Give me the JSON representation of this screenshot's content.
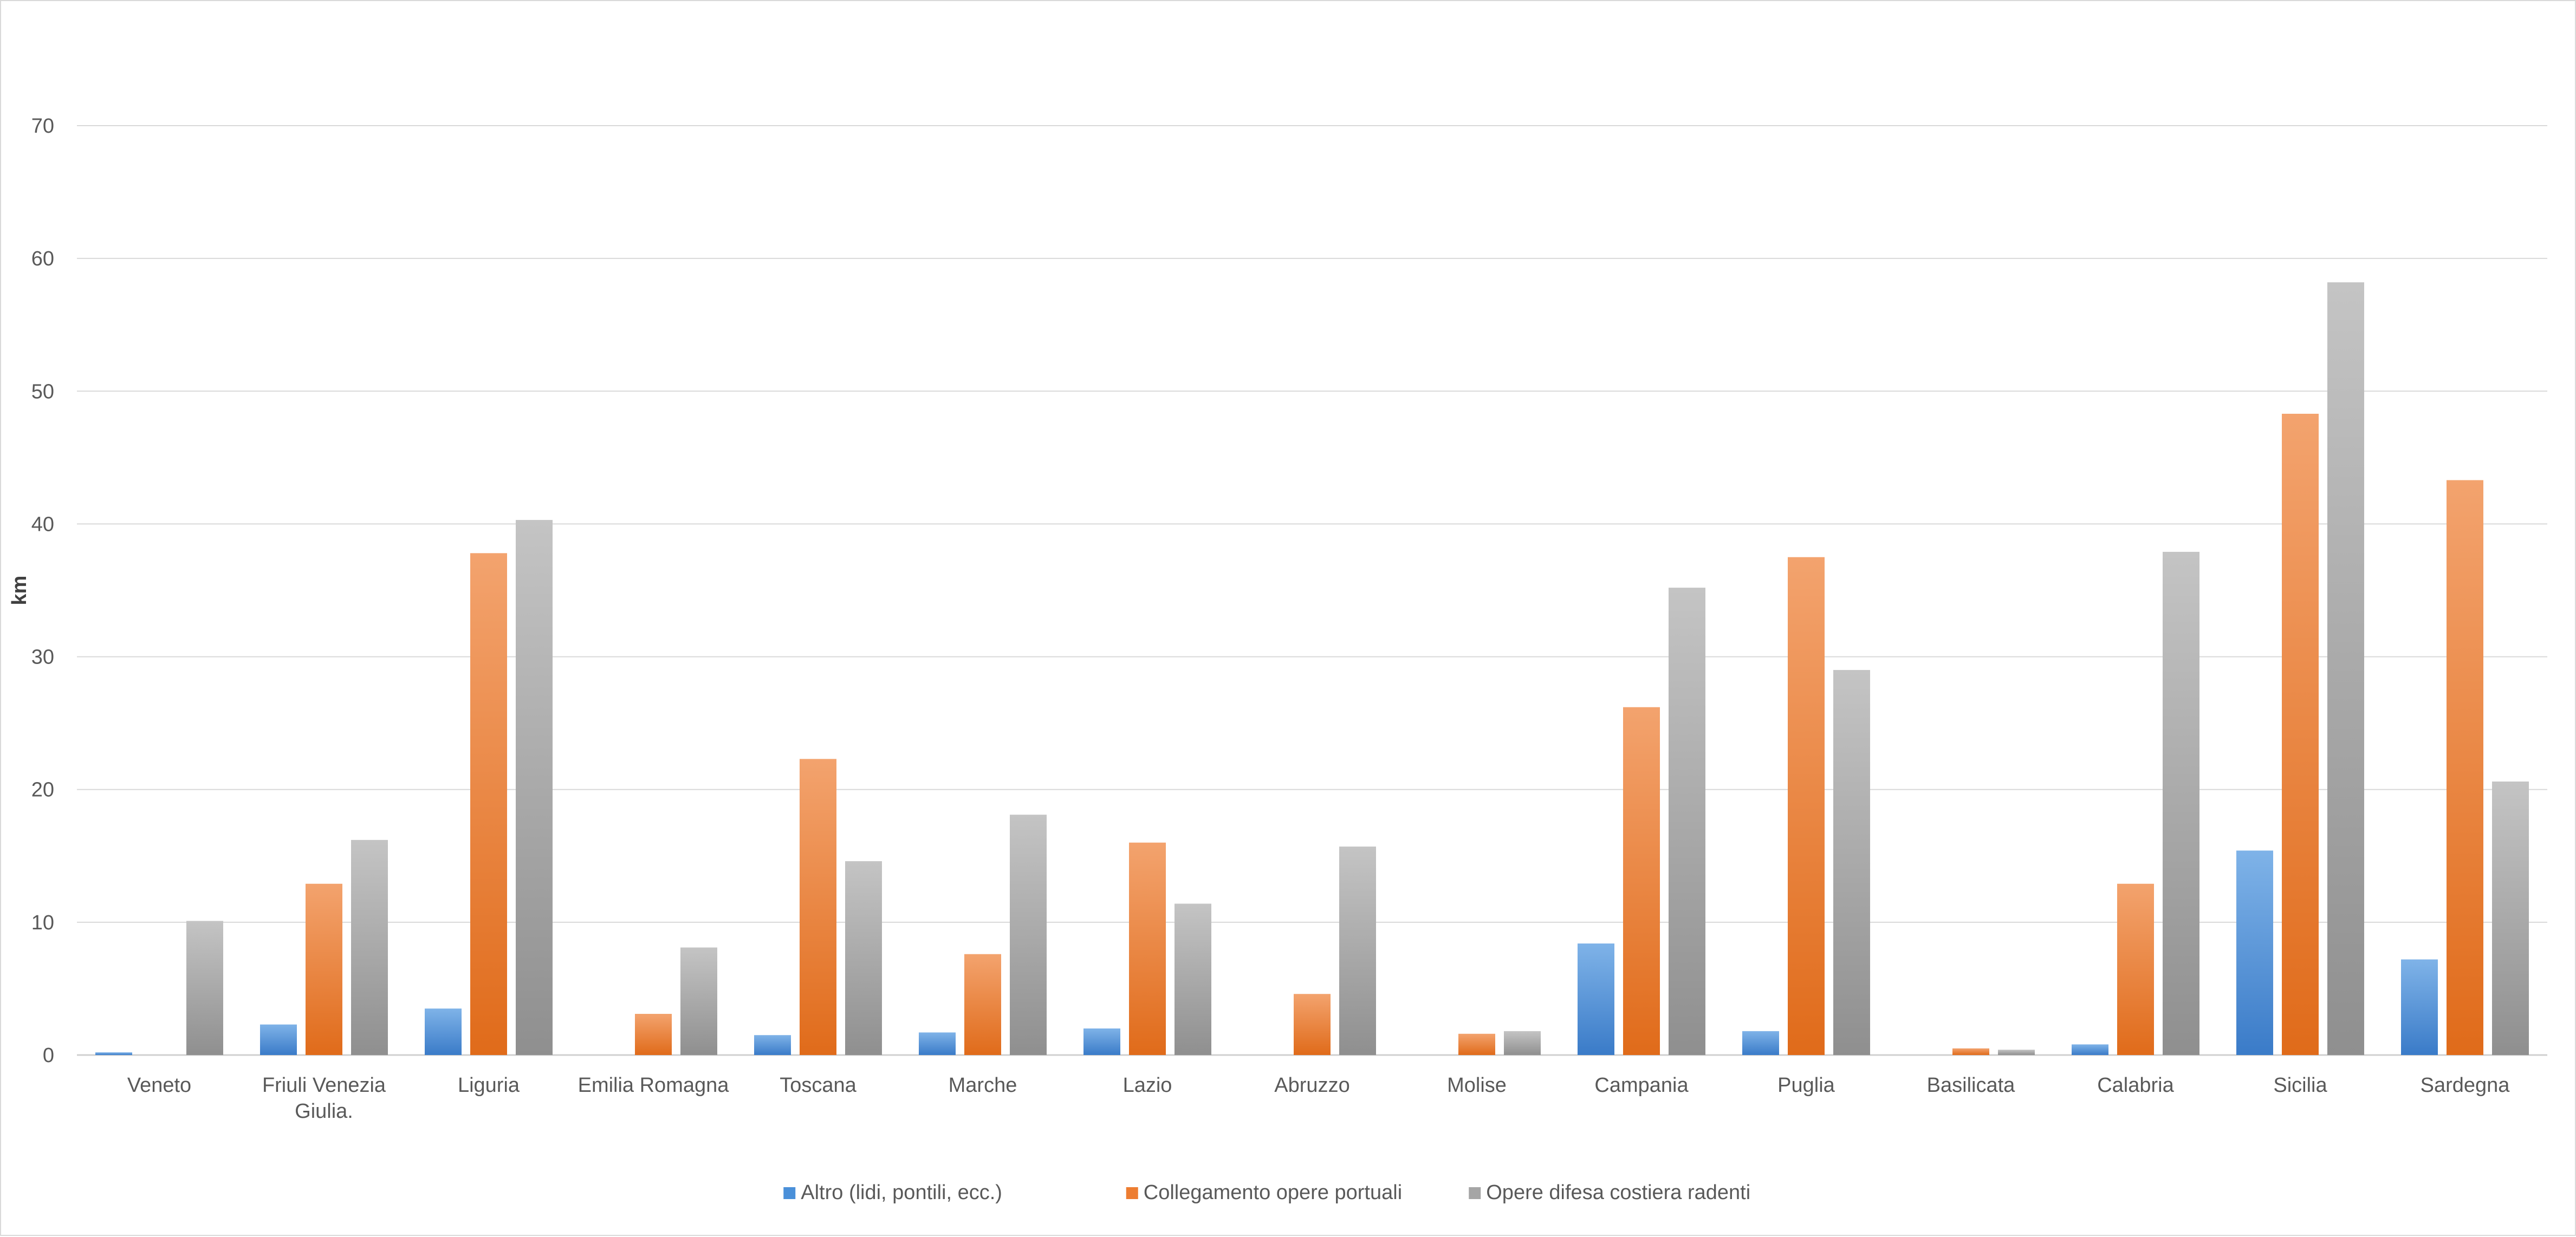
{
  "chart_data": {
    "type": "bar",
    "title": "",
    "xlabel": "",
    "ylabel": "km",
    "ylim": [
      0,
      70
    ],
    "yticks": [
      0,
      10,
      20,
      30,
      40,
      50,
      60,
      70
    ],
    "grid": true,
    "legend_position": "bottom",
    "categories": [
      [
        "Veneto"
      ],
      [
        "Friuli Venezia",
        "Giulia."
      ],
      [
        "Liguria"
      ],
      [
        "Emilia Romagna"
      ],
      [
        "Toscana"
      ],
      [
        "Marche"
      ],
      [
        "Lazio"
      ],
      [
        "Abruzzo"
      ],
      [
        "Molise"
      ],
      [
        "Campania"
      ],
      [
        "Puglia"
      ],
      [
        "Basilicata"
      ],
      [
        "Calabria"
      ],
      [
        "Sicilia"
      ],
      [
        "Sardegna"
      ]
    ],
    "series": [
      {
        "name": "Altro (lidi, pontili, ecc.)",
        "color": "#4a90d9",
        "color_light": "#7fb3e8",
        "color_dark": "#3a7bc8",
        "values": [
          0.2,
          2.3,
          3.5,
          0,
          1.5,
          1.7,
          2.0,
          0,
          0,
          8.4,
          1.8,
          0,
          0.8,
          15.4,
          7.2
        ]
      },
      {
        "name": "Collegamento opere portuali",
        "color": "#ed7d31",
        "color_light": "#f3a36e",
        "color_dark": "#e06b1a",
        "values": [
          0,
          12.9,
          37.8,
          3.1,
          22.3,
          7.6,
          16.0,
          4.6,
          1.6,
          26.2,
          37.5,
          0.5,
          12.9,
          48.3,
          43.3
        ]
      },
      {
        "name": "Opere difesa costiera radenti",
        "color": "#a5a5a5",
        "color_light": "#c4c4c4",
        "color_dark": "#8f8f8f",
        "values": [
          10.1,
          16.2,
          40.3,
          8.1,
          14.6,
          18.1,
          11.4,
          15.7,
          1.8,
          35.2,
          29.0,
          0.4,
          37.9,
          58.2,
          20.6
        ]
      }
    ]
  }
}
